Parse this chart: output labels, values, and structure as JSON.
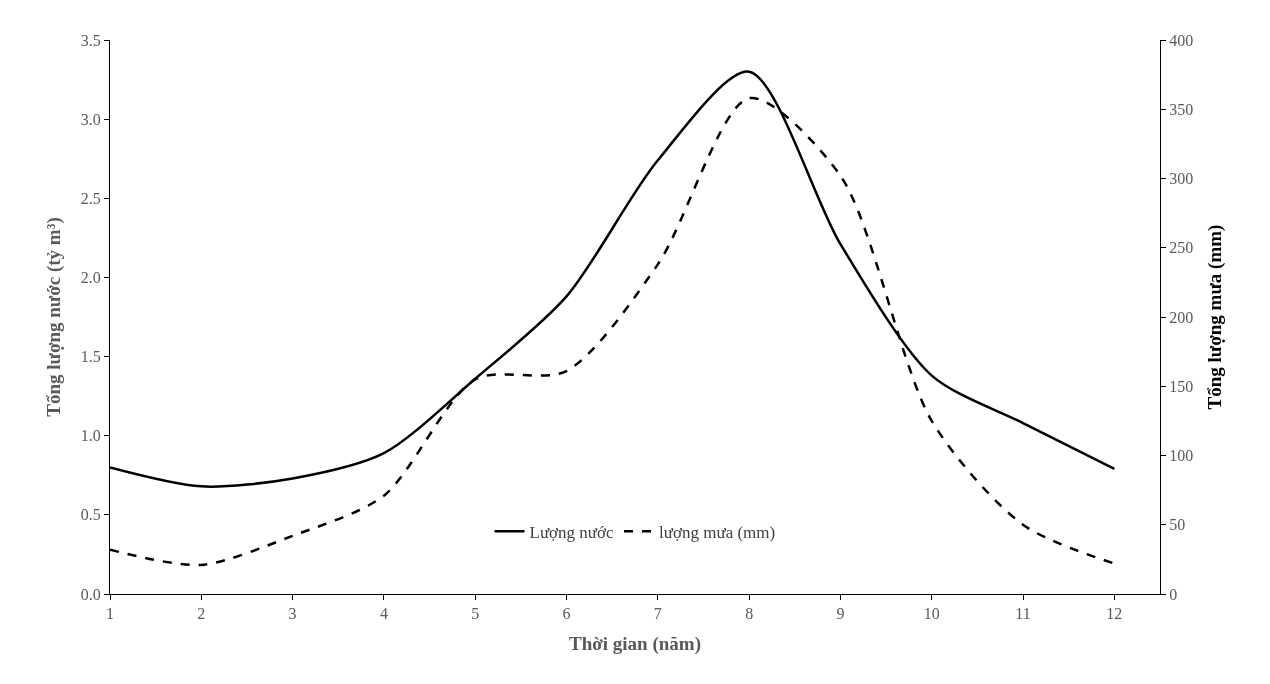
{
  "chart_data": {
    "type": "line",
    "xlabel": "Thời gian (năm)",
    "ylabel": "Tổng lượng nước (tỷ m³)",
    "y2label": "Tổng lượng mưa (mm)",
    "x": [
      1,
      2,
      3,
      4,
      5,
      6,
      7,
      8,
      9,
      10,
      11,
      12
    ],
    "series": [
      {
        "name": "Lượng nước",
        "color": "#000000",
        "line_style": "solid",
        "values": [
          0.8,
          0.68,
          0.73,
          0.89,
          1.36,
          1.88,
          2.74,
          3.3,
          2.21,
          1.38,
          1.08,
          0.79
        ]
      },
      {
        "name": "lượng mưa (mm)",
        "color": "#000000",
        "line_style": "dashed",
        "axis": "y2",
        "values": [
          32,
          21,
          42,
          71,
          155,
          161,
          238,
          358,
          302,
          125,
          50,
          22
        ]
      }
    ],
    "xlim": [
      1,
      12.5
    ],
    "xticks": [
      1,
      2,
      3,
      4,
      5,
      6,
      7,
      8,
      9,
      10,
      11,
      12
    ],
    "ylim": [
      0,
      3.5
    ],
    "yticks": [
      {
        "value": 0,
        "label": "0.0"
      },
      0.5,
      {
        "value": 1,
        "label": "1.0"
      },
      1.5,
      {
        "value": 2,
        "label": "2.0"
      },
      2.5,
      {
        "value": 3,
        "label": "3.0"
      },
      3.5
    ],
    "y2lim": [
      0,
      400
    ],
    "y2ticks": [
      0,
      50,
      100,
      150,
      200,
      250,
      300,
      350,
      400
    ],
    "legend": "bottom",
    "marker": "none"
  }
}
